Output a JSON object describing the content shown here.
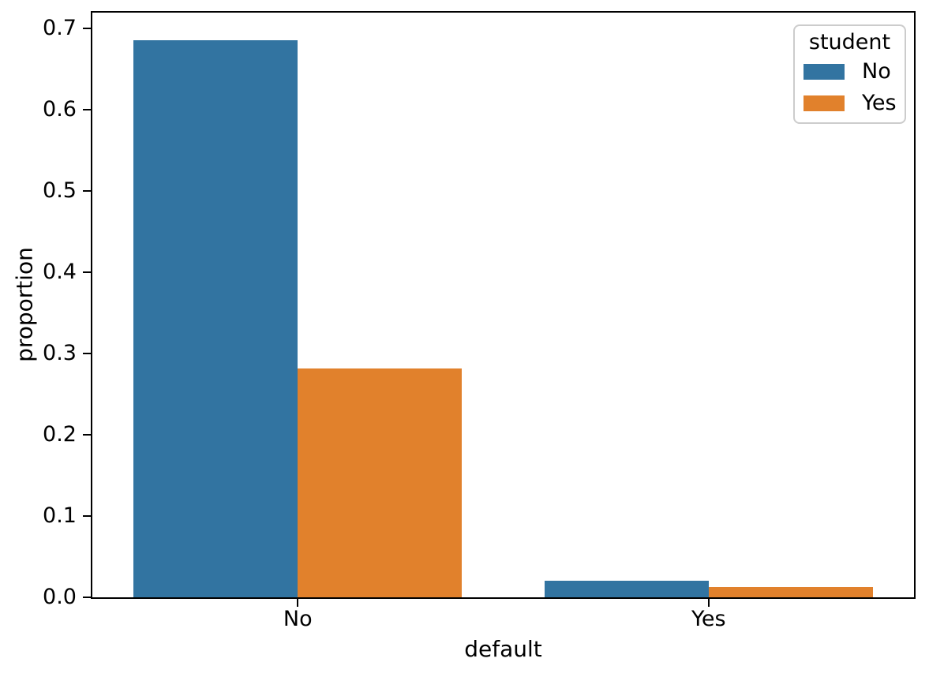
{
  "chart_data": {
    "type": "bar",
    "title": "",
    "xlabel": "default",
    "ylabel": "proportion",
    "categories": [
      "No",
      "Yes"
    ],
    "series": [
      {
        "name": "No",
        "color": "#3274a1",
        "values": [
          0.685,
          0.0206
        ]
      },
      {
        "name": "Yes",
        "color": "#e1812c",
        "values": [
          0.2817,
          0.0127
        ]
      }
    ],
    "yticks": [
      0.0,
      0.1,
      0.2,
      0.3,
      0.4,
      0.5,
      0.6,
      0.7
    ],
    "ytick_labels": [
      "0.0",
      "0.1",
      "0.2",
      "0.3",
      "0.4",
      "0.5",
      "0.6",
      "0.7"
    ],
    "ylim": [
      0,
      0.71925
    ],
    "xlim_note": "two categorical slots, group width 0.8, bar width 0.4",
    "grid": false,
    "background": "#ffffff",
    "spine_color": "#000000",
    "legend": {
      "title": "student",
      "position": "upper right",
      "entries": [
        {
          "label": "No",
          "color": "#3274a1"
        },
        {
          "label": "Yes",
          "color": "#e1812c"
        }
      ]
    }
  }
}
